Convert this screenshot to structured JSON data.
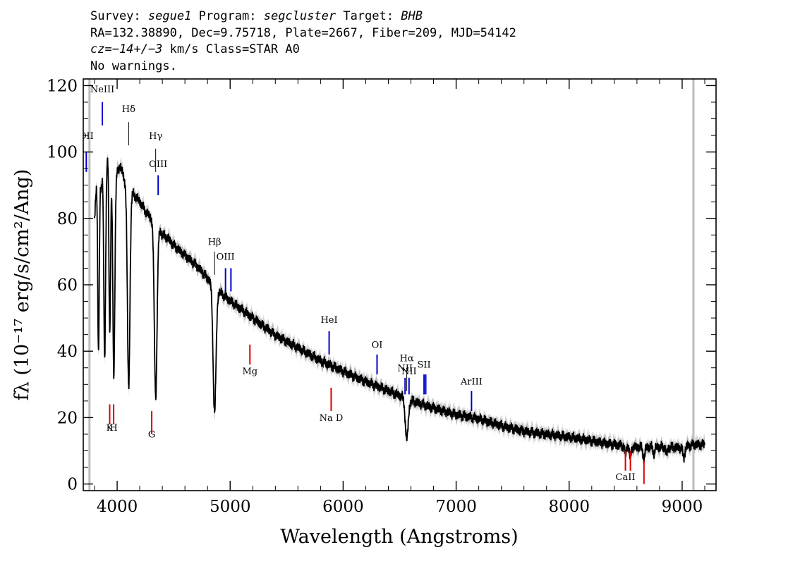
{
  "header": {
    "line1": {
      "survey_label": "Survey:",
      "survey": "segue1",
      "program_label": "Program:",
      "program": "segcluster",
      "target_label": "Target:",
      "target": "BHB"
    },
    "line2": "RA=132.38890, Dec=9.75718, Plate=2667, Fiber=209, MJD=54142",
    "line3": {
      "cz": "cz=−14+/−3",
      "rest": " km/s Class=STAR A0"
    },
    "line4": "No warnings."
  },
  "colors": {
    "flux": "#000000",
    "error_band": "#bdbdbd",
    "emission": "#0000cc",
    "absorption": "#dd0000",
    "balmer": "#000000",
    "gap": "#bdbdbd"
  },
  "chart_data": {
    "type": "line",
    "xlabel": "Wavelength (Angstroms)",
    "ylabel": "fλ (10⁻¹⁷ erg/s/cm²/Ang)",
    "xlim": [
      3700,
      9300
    ],
    "ylim": [
      -2,
      122
    ],
    "x_ticks": [
      4000,
      5000,
      6000,
      7000,
      8000,
      9000
    ],
    "y_ticks": [
      0,
      20,
      40,
      60,
      80,
      100,
      120
    ],
    "grid": false,
    "continuum": {
      "x": [
        3800,
        3820,
        3840,
        3860,
        3880,
        3900,
        3920,
        3940,
        3960,
        3980,
        4000,
        4030,
        4060,
        4100,
        4150,
        4200,
        4250,
        4300,
        4350,
        4400,
        4450,
        4500,
        4600,
        4700,
        4800,
        4900,
        5000,
        5200,
        5400,
        5600,
        5800,
        6000,
        6200,
        6400,
        6600,
        6800,
        7000,
        7200,
        7400,
        7600,
        7800,
        8000,
        8200,
        8400,
        8600,
        8800,
        9000,
        9100,
        9200
      ],
      "y": [
        80,
        92,
        96,
        88,
        100,
        92,
        101,
        88,
        100,
        92,
        94,
        96,
        92,
        89,
        87,
        85,
        82,
        80,
        78,
        75,
        74,
        72,
        69,
        66,
        62,
        58,
        55,
        50,
        45,
        41,
        37,
        34,
        31,
        28,
        25,
        23,
        21,
        19.5,
        17.5,
        16,
        15,
        14,
        13,
        12,
        11,
        11,
        11,
        12,
        12
      ]
    },
    "absorption_features": [
      {
        "x": 3835,
        "depth": 55,
        "width": 7
      },
      {
        "x": 3889,
        "depth": 58,
        "width": 8
      },
      {
        "x": 3934,
        "depth": 45,
        "width": 7
      },
      {
        "x": 3970,
        "depth": 63,
        "width": 9
      },
      {
        "x": 4102,
        "depth": 60,
        "width": 11
      },
      {
        "x": 4341,
        "depth": 52,
        "width": 12
      },
      {
        "x": 4862,
        "depth": 38,
        "width": 13
      },
      {
        "x": 6563,
        "depth": 12,
        "width": 13
      },
      {
        "x": 8498,
        "depth": 2.5,
        "width": 7
      },
      {
        "x": 8542,
        "depth": 3.5,
        "width": 7
      },
      {
        "x": 8662,
        "depth": 3.5,
        "width": 8
      },
      {
        "x": 8750,
        "depth": 2,
        "width": 7
      },
      {
        "x": 8863,
        "depth": 2,
        "width": 8
      },
      {
        "x": 9015,
        "depth": 3,
        "width": 9
      }
    ],
    "error_band_halfwidth": 1.8,
    "masked_wavelengths": [
      3755,
      9100
    ],
    "line_markers": [
      {
        "label": "OII",
        "x": 3727,
        "y0": 94,
        "y1": 100,
        "label_y": 104,
        "group": "emission"
      },
      {
        "label": "NeIII",
        "x": 3869,
        "y0": 108,
        "y1": 115,
        "label_y": 118,
        "group": "emission"
      },
      {
        "label": "Hδ",
        "x": 4102,
        "y0": 102,
        "y1": 109,
        "label_y": 112,
        "group": "balmer"
      },
      {
        "label": "Hγ",
        "x": 4341,
        "y0": 94,
        "y1": 101,
        "label_y": 104,
        "group": "balmer"
      },
      {
        "label": "OIII",
        "x": 4363,
        "y0": 87,
        "y1": 93,
        "label_y": 95.5,
        "group": "emission"
      },
      {
        "label": "Hβ",
        "x": 4862,
        "y0": 63,
        "y1": 70,
        "label_y": 72,
        "group": "balmer"
      },
      {
        "label": "OIII",
        "x": 4959,
        "y0": 58,
        "y1": 65,
        "label_y": 67.5,
        "group": "emission"
      },
      {
        "label": "",
        "x": 5007,
        "y0": 58,
        "y1": 65,
        "label_y": 0,
        "group": "emission"
      },
      {
        "label": "HeI",
        "x": 5876,
        "y0": 39,
        "y1": 46,
        "label_y": 48.5,
        "group": "emission"
      },
      {
        "label": "OI",
        "x": 6300,
        "y0": 33,
        "y1": 39,
        "label_y": 41,
        "group": "emission"
      },
      {
        "label": "NII",
        "x": 6548,
        "y0": 27,
        "y1": 32,
        "label_y": 34,
        "group": "emission"
      },
      {
        "label": "Hα",
        "x": 6563,
        "y0": 28,
        "y1": 35,
        "label_y": 37,
        "group": "balmer"
      },
      {
        "label": "NII",
        "x": 6583,
        "y0": 27,
        "y1": 32,
        "label_y": 33,
        "group": "emission"
      },
      {
        "label": "SII",
        "x": 6716,
        "y0": 27,
        "y1": 33,
        "label_y": 35,
        "group": "emission"
      },
      {
        "label": "",
        "x": 6731,
        "y0": 27,
        "y1": 33,
        "label_y": 0,
        "group": "emission"
      },
      {
        "label": "ArIII",
        "x": 7136,
        "y0": 22,
        "y1": 28,
        "label_y": 30,
        "group": "emission"
      },
      {
        "label": "K",
        "x": 3934,
        "y0": 18,
        "y1": 24,
        "label_y": 16,
        "group": "absorption"
      },
      {
        "label": "H",
        "x": 3969,
        "y0": 18,
        "y1": 24,
        "label_y": 16,
        "group": "absorption"
      },
      {
        "label": "G",
        "x": 4306,
        "y0": 15,
        "y1": 22,
        "label_y": 14,
        "group": "absorption"
      },
      {
        "label": "Mg",
        "x": 5175,
        "y0": 36,
        "y1": 42,
        "label_y": 33,
        "group": "absorption"
      },
      {
        "label": "Na D",
        "x": 5894,
        "y0": 22,
        "y1": 29,
        "label_y": 19,
        "group": "absorption"
      },
      {
        "label": "CaII",
        "x": 8498,
        "y0": 4,
        "y1": 10,
        "label_y": 1.2,
        "group": "absorption"
      },
      {
        "label": "",
        "x": 8542,
        "y0": 4,
        "y1": 10,
        "label_y": 0,
        "group": "absorption"
      },
      {
        "label": "",
        "x": 8662,
        "y0": 0,
        "y1": 7,
        "label_y": 0,
        "group": "absorption"
      }
    ]
  }
}
